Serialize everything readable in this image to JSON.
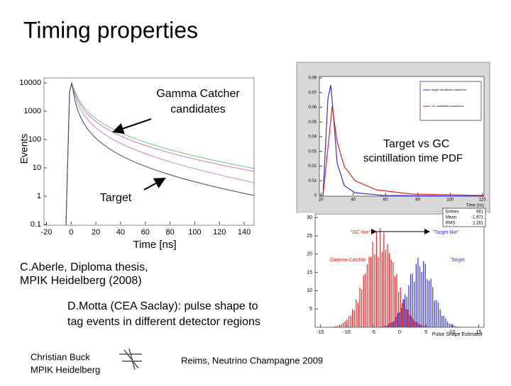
{
  "title": "Timing properties",
  "left_plot": {
    "ylabel": "Events",
    "xlabel": "Time [ns]",
    "yticks": [
      {
        "value": 10000,
        "label": "10000"
      },
      {
        "value": 1000,
        "label": "1000"
      },
      {
        "value": 100,
        "label": "100"
      },
      {
        "value": 10,
        "label": "10"
      },
      {
        "value": 1,
        "label": "1"
      },
      {
        "value": 0.1,
        "label": "0.1"
      }
    ],
    "ylim": [
      0.1,
      10000
    ],
    "xlim": [
      -22,
      148
    ],
    "xticks": [
      -20,
      0,
      20,
      40,
      60,
      80,
      100,
      120,
      140
    ],
    "annotation_gc": [
      "Gamma Catcher",
      "candidates"
    ],
    "annotation_target": "Target"
  },
  "right_top_plot": {
    "ylim": [
      0,
      0.08
    ],
    "xlim": [
      19,
      121
    ],
    "yticks": [
      {
        "value": 0.08,
        "label": "0.08"
      },
      {
        "value": 0.07,
        "label": "0.07"
      },
      {
        "value": 0.06,
        "label": "0.06"
      },
      {
        "value": 0.05,
        "label": "0.05"
      },
      {
        "value": 0.04,
        "label": "0.04"
      },
      {
        "value": 0.03,
        "label": "0.03"
      },
      {
        "value": 0.02,
        "label": "0.02"
      },
      {
        "value": 0.01,
        "label": "0.01"
      },
      0
    ],
    "xticks": [
      20,
      40,
      60,
      80,
      100,
      120
    ],
    "xlabel": "Time (ns)",
    "heading": [
      "Target vs GC",
      "scintillation time PDF"
    ],
    "legend": [
      "target scintillation waveform",
      "GC scintillation waveform"
    ]
  },
  "right_bottom_plot": {
    "ylim": [
      0,
      31
    ],
    "xlim": [
      -16,
      16
    ],
    "stats": [
      [
        "Entries",
        "981"
      ],
      [
        "Mean",
        "-1.971"
      ],
      [
        "RMS",
        "2.281"
      ]
    ],
    "yticks": [
      30,
      25,
      20,
      15,
      10,
      5
    ],
    "xticks": [
      -15,
      -10,
      -5,
      0,
      5,
      10,
      15
    ],
    "xlabel": "Pulse Shape Estimator",
    "labels": [
      "\"GC-like\"",
      "\"Target-like\"",
      "Gamma-Catcher",
      "Target"
    ]
  },
  "citation1": [
    "C.Aberle, Diploma thesis,",
    "MPIK Heidelberg (2008)"
  ],
  "citation2": [
    "D.Motta (CEA Saclay): pulse shape to",
    "tag events in different detector regions"
  ],
  "footer": {
    "author": [
      "Christian Buck",
      "MPIK Heidelberg"
    ],
    "event": "Reims, Neutrino Champagne 2009"
  }
}
